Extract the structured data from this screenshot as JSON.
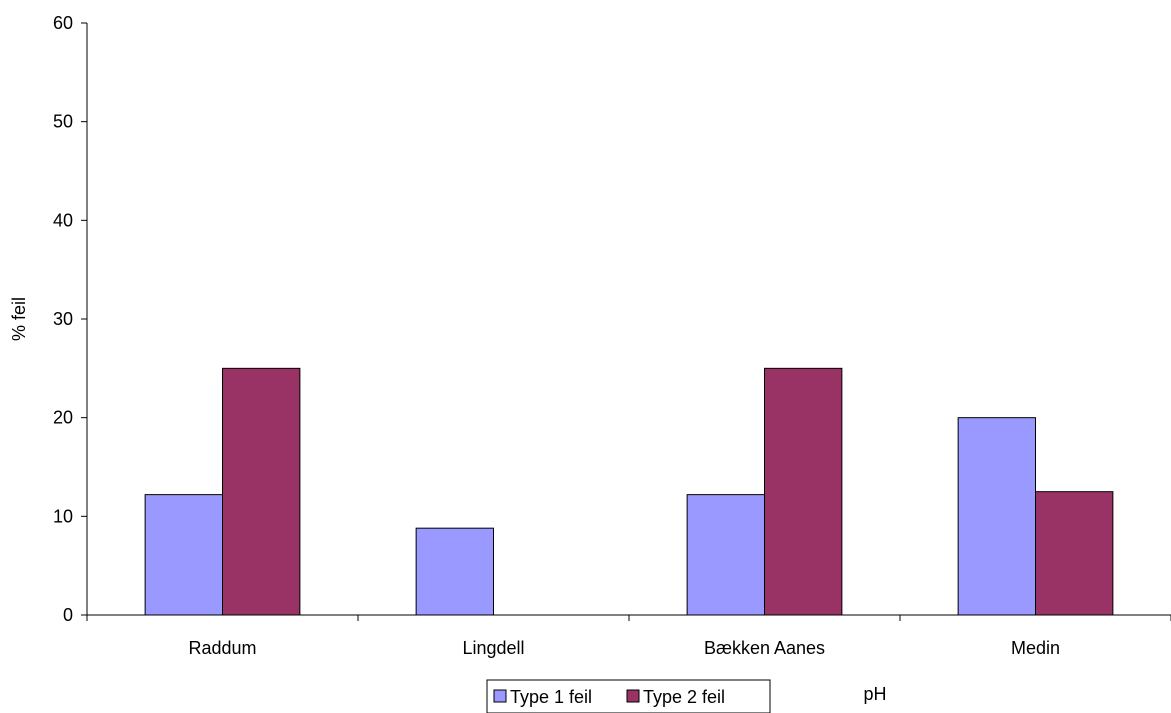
{
  "chart_data": {
    "type": "bar",
    "categories": [
      "Raddum",
      "Lingdell",
      "Bækken Aanes",
      "Medin"
    ],
    "series": [
      {
        "name": "Type 1 feil",
        "values": [
          12.2,
          8.8,
          12.2,
          20.0
        ],
        "color": "#9999ff"
      },
      {
        "name": "Type 2 feil",
        "values": [
          25.0,
          0,
          25.0,
          12.5
        ],
        "color": "#993366"
      }
    ],
    "title": "",
    "xlabel": "pH",
    "ylabel": "% feil",
    "ylim": [
      0,
      60
    ],
    "yticks": [
      "0",
      "10",
      "20",
      "30",
      "40",
      "50",
      "60"
    ],
    "grid": false,
    "legend_position": "bottom"
  }
}
